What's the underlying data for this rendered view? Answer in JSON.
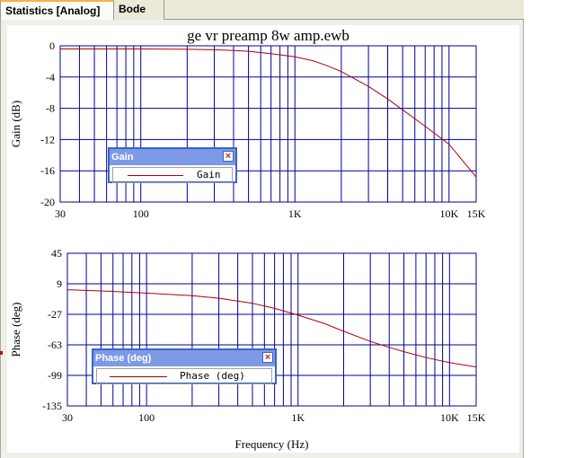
{
  "tabs": [
    {
      "label": "Statistics [Analog]",
      "active": true
    },
    {
      "label": "Bode",
      "active": false
    }
  ],
  "colors": {
    "grid": "#000099",
    "trace": "#b00000",
    "legend_title_bg": "#7c9ae6",
    "legend_border": "#3d62c7"
  },
  "chart_data": [
    {
      "type": "line",
      "title": "ge vr preamp 8w amp.ewb",
      "xlabel": "",
      "ylabel": "Gain (dB)",
      "x_scale": "log",
      "xlim": [
        30,
        15000
      ],
      "ylim": [
        -20,
        0
      ],
      "x_ticks": [
        30,
        100,
        1000,
        10000,
        15000
      ],
      "x_tick_labels": [
        "30",
        "100",
        "1K",
        "10K",
        "15K"
      ],
      "y_ticks": [
        0,
        -4,
        -8,
        -12,
        -16,
        -20
      ],
      "y_tick_labels": [
        "0",
        "-4",
        "-8",
        "-12",
        "-16",
        "-20"
      ],
      "grid": true,
      "legend": {
        "title": "Gain",
        "entries": [
          "Gain"
        ]
      },
      "series": [
        {
          "name": "Gain",
          "x": [
            30,
            100,
            200,
            300,
            400,
            500,
            700,
            1000,
            1300,
            1600,
            2000,
            3000,
            4000,
            5000,
            7000,
            10000,
            15000
          ],
          "y": [
            -0.4,
            -0.4,
            -0.45,
            -0.5,
            -0.6,
            -0.7,
            -1.0,
            -1.4,
            -1.9,
            -2.5,
            -3.3,
            -5.2,
            -6.8,
            -8.2,
            -10.3,
            -12.6,
            -16.8
          ]
        }
      ]
    },
    {
      "type": "line",
      "title": "",
      "xlabel": "Frequency (Hz)",
      "ylabel": "Phase (deg)",
      "x_scale": "log",
      "xlim": [
        30,
        15000
      ],
      "ylim": [
        -135,
        45
      ],
      "x_ticks": [
        30,
        100,
        1000,
        10000,
        15000
      ],
      "x_tick_labels": [
        "30",
        "100",
        "1K",
        "10K",
        "15K"
      ],
      "y_ticks": [
        45,
        9,
        -27,
        -63,
        -99,
        -135
      ],
      "y_tick_labels": [
        "45",
        "9",
        "-27",
        "-63",
        "-99",
        "-135"
      ],
      "grid": true,
      "legend": {
        "title": "Phase (deg)",
        "entries": [
          "Phase (deg)"
        ]
      },
      "series": [
        {
          "name": "Phase (deg)",
          "x": [
            30,
            60,
            100,
            200,
            300,
            500,
            700,
            1000,
            1500,
            2000,
            3000,
            4000,
            5000,
            7000,
            10000,
            15000
          ],
          "y": [
            2,
            0,
            -2,
            -5,
            -8,
            -14,
            -20,
            -28,
            -38,
            -47,
            -59,
            -66,
            -71,
            -78,
            -84,
            -89
          ]
        }
      ]
    }
  ]
}
